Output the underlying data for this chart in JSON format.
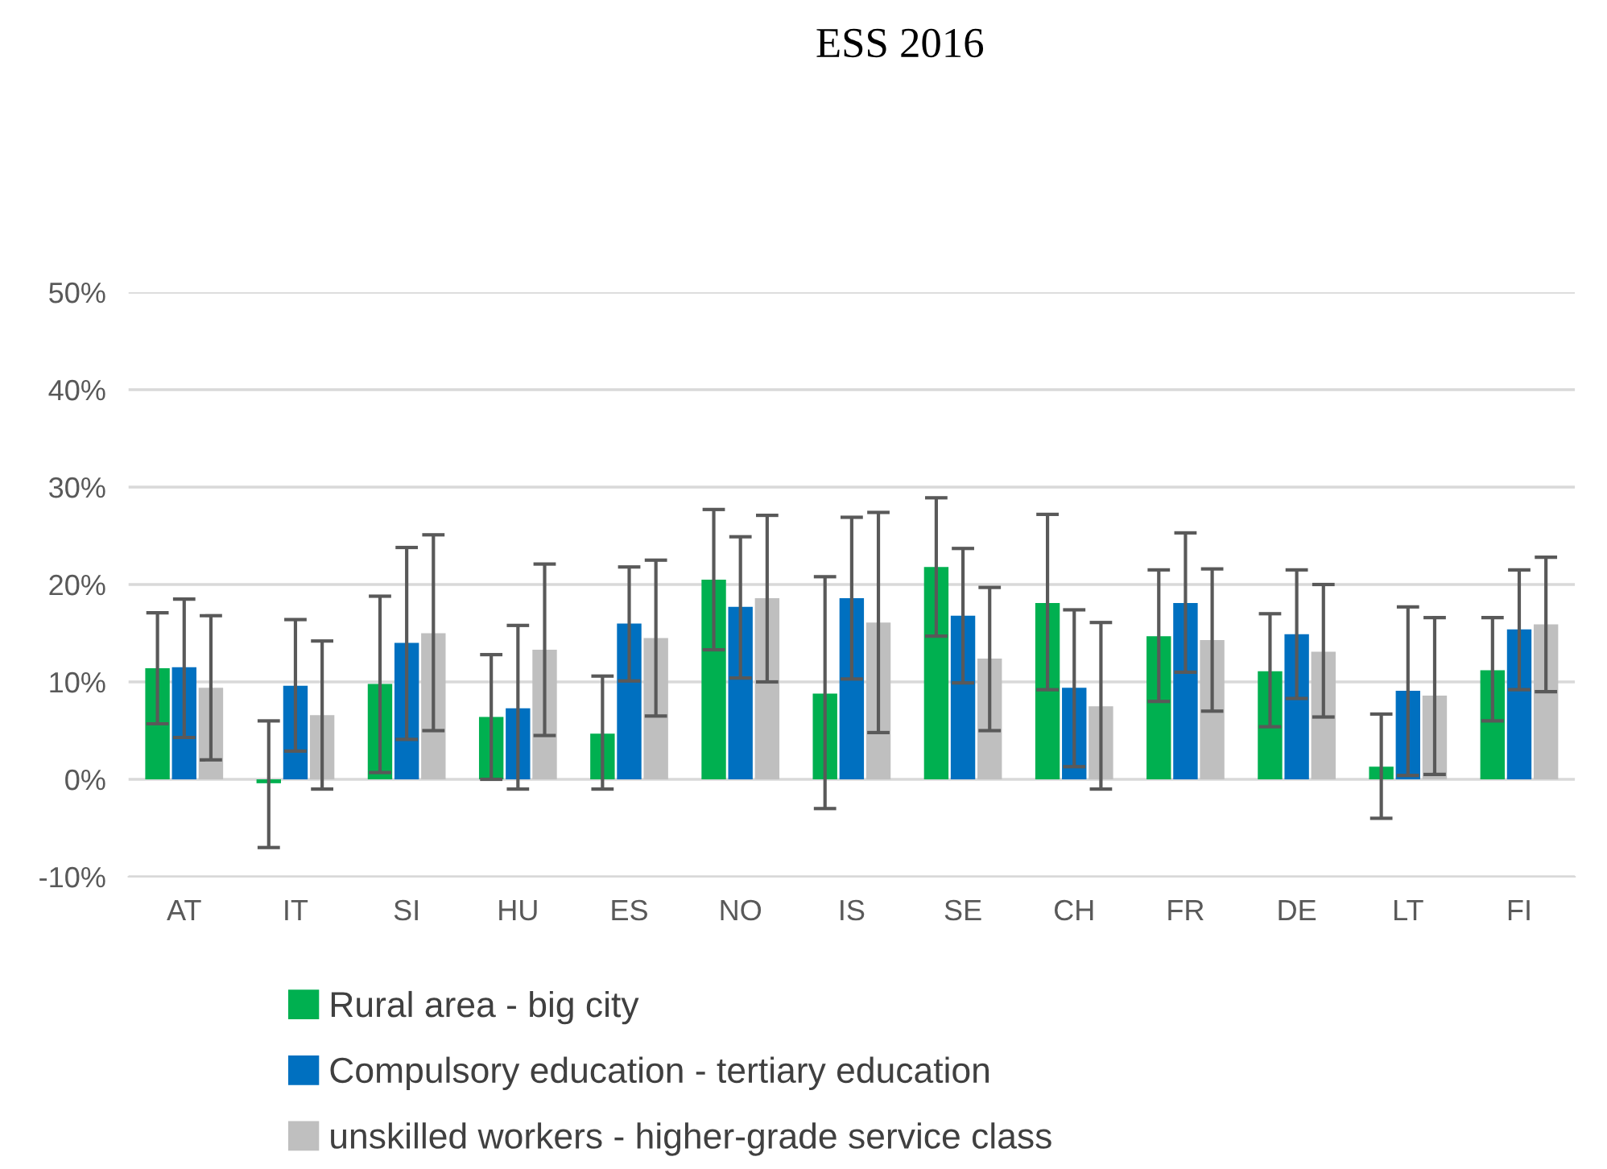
{
  "chart_data": {
    "type": "bar",
    "title": "ESS 2016",
    "categories": [
      "AT",
      "IT",
      "SI",
      "HU",
      "ES",
      "NO",
      "IS",
      "SE",
      "CH",
      "FR",
      "DE",
      "LT",
      "FI"
    ],
    "series": [
      {
        "name": "Rural area - big city",
        "color": "#00b050",
        "values": [
          11.4,
          -0.4,
          9.8,
          6.4,
          4.7,
          20.5,
          8.8,
          21.8,
          18.1,
          14.7,
          11.1,
          1.3,
          11.2
        ],
        "errors": [
          [
            5.7,
            17.1
          ],
          [
            -7,
            6
          ],
          [
            0.7,
            18.8
          ],
          [
            0,
            12.8
          ],
          [
            -1,
            10.6
          ],
          [
            13.3,
            27.7
          ],
          [
            -3,
            20.8
          ],
          [
            14.7,
            28.9
          ],
          [
            9.2,
            27.2
          ],
          [
            8,
            21.5
          ],
          [
            5.4,
            17
          ],
          [
            -4,
            6.7
          ],
          [
            6,
            16.6
          ]
        ]
      },
      {
        "name": "Compulsory education - tertiary education",
        "color": "#0070c0",
        "values": [
          11.5,
          9.6,
          14,
          7.3,
          16,
          17.7,
          18.6,
          16.8,
          9.4,
          18.1,
          14.9,
          9.1,
          15.4
        ],
        "errors": [
          [
            4.3,
            18.5
          ],
          [
            2.9,
            16.4
          ],
          [
            4.1,
            23.8
          ],
          [
            -1,
            15.8
          ],
          [
            10.1,
            21.8
          ],
          [
            10.4,
            24.9
          ],
          [
            10.3,
            26.9
          ],
          [
            9.9,
            23.7
          ],
          [
            1.3,
            17.4
          ],
          [
            11,
            25.3
          ],
          [
            8.3,
            21.5
          ],
          [
            0.4,
            17.7
          ],
          [
            9.2,
            21.5
          ]
        ]
      },
      {
        "name": "unskilled workers - higher-grade service class",
        "color": "#bfbfbf",
        "values": [
          9.4,
          6.6,
          15,
          13.3,
          14.5,
          18.6,
          16.1,
          12.4,
          7.5,
          14.3,
          13.1,
          8.6,
          15.9
        ],
        "errors": [
          [
            2,
            16.8
          ],
          [
            -1,
            14.2
          ],
          [
            5,
            25.1
          ],
          [
            4.5,
            22.1
          ],
          [
            6.5,
            22.5
          ],
          [
            10,
            27.1
          ],
          [
            4.8,
            27.4
          ],
          [
            5,
            19.7
          ],
          [
            -1,
            16.1
          ],
          [
            7,
            21.6
          ],
          [
            6.4,
            20
          ],
          [
            0.5,
            16.6
          ],
          [
            9,
            22.8
          ]
        ]
      }
    ],
    "ylim": [
      -10,
      50
    ],
    "yticks": [
      {
        "value": -10,
        "label": "-10%"
      },
      {
        "value": 0,
        "label": "0%"
      },
      {
        "value": 10,
        "label": "10%"
      },
      {
        "value": 20,
        "label": "20%"
      },
      {
        "value": 30,
        "label": "30%"
      },
      {
        "value": 40,
        "label": "40%"
      },
      {
        "value": 50,
        "label": "50%"
      }
    ],
    "grid": "y",
    "legend": "bottom"
  }
}
